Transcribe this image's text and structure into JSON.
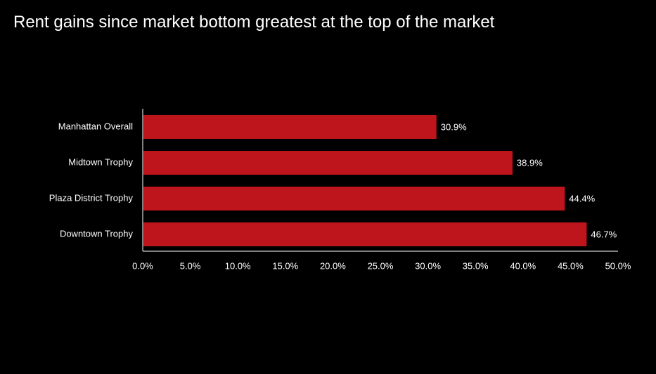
{
  "title": "Rent gains since market bottom greatest at the top of the market",
  "colors": {
    "background": "#000000",
    "bar": "#be141c",
    "text": "#ffffff",
    "axis": "#ffffff"
  },
  "chart_data": {
    "type": "bar",
    "orientation": "horizontal",
    "title": "Rent gains since market bottom greatest at the top of the market",
    "categories": [
      "Manhattan Overall",
      "Midtown Trophy",
      "Plaza District Trophy",
      "Downtown Trophy"
    ],
    "values": [
      30.9,
      38.9,
      44.4,
      46.7
    ],
    "data_labels": [
      "30.9%",
      "38.9%",
      "44.4%",
      "46.7%"
    ],
    "xlim": [
      0,
      50
    ],
    "x_ticks": [
      0,
      5,
      10,
      15,
      20,
      25,
      30,
      35,
      40,
      45,
      50
    ],
    "x_tick_labels": [
      "0.0%",
      "5.0%",
      "10.0%",
      "15.0%",
      "20.0%",
      "25.0%",
      "30.0%",
      "35.0%",
      "40.0%",
      "45.0%",
      "50.0%"
    ],
    "xlabel": "",
    "ylabel": "",
    "grid": false,
    "legend": "none"
  }
}
